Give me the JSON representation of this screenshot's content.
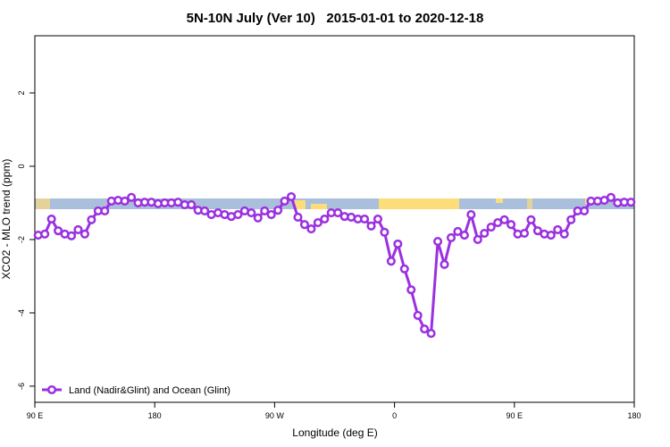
{
  "chart_data": {
    "type": "line",
    "title": "5N-10N July (Ver 10)   2015-01-01 to 2020-12-18",
    "x_label": "Longitude (deg E)",
    "y_label": "XCO2 - MLO trend (ppm)",
    "xlim": [
      -270,
      180
    ],
    "ylim": [
      -6.44,
      3.56
    ],
    "xticks": [
      {
        "value": -270,
        "label": "90 E"
      },
      {
        "value": -180,
        "label": "180"
      },
      {
        "value": -90,
        "label": "90 W"
      },
      0,
      {
        "value": 90,
        "label": "90 E"
      },
      {
        "value": 180,
        "label": "180"
      }
    ],
    "yticks": [
      -6,
      -4,
      -2,
      0,
      2
    ],
    "legend_position": "bottom-left",
    "x": [
      -267.5,
      -262.5,
      -257.5,
      -252.5,
      -247.5,
      -242.5,
      -237.5,
      -232.5,
      -227.5,
      -222.5,
      -217.5,
      -212.5,
      -207.5,
      -202.5,
      -197.5,
      -192.5,
      -187.5,
      -182.5,
      -177.5,
      -172.5,
      -167.5,
      -162.5,
      -157.5,
      -152.5,
      -147.5,
      -142.5,
      -137.5,
      -132.5,
      -127.5,
      -122.5,
      -117.5,
      -112.5,
      -107.5,
      -102.5,
      -97.5,
      -92.5,
      -87.5,
      -82.5,
      -77.5,
      -72.5,
      -67.5,
      -62.5,
      -57.5,
      -52.5,
      -47.5,
      -42.5,
      -37.5,
      -32.5,
      -27.5,
      -22.5,
      -17.5,
      -12.5,
      -7.5,
      -2.5,
      2.5,
      7.5,
      12.5,
      17.5,
      22.5,
      27.5,
      32.5,
      37.5,
      42.5,
      47.5,
      52.5,
      57.5,
      62.5,
      67.5,
      72.5,
      77.5,
      82.5,
      87.5,
      92.5,
      97.5,
      102.5,
      107.5,
      112.5,
      117.5,
      122.5,
      127.5,
      132.5,
      137.5,
      142.5,
      147.5,
      152.5,
      157.5,
      162.5,
      167.5,
      172.5,
      177.5
    ],
    "series": [
      {
        "name": "Land (Nadir&Glint) and Ocean (Glint)",
        "color": "#9b30e0",
        "values": [
          -1.88,
          -1.85,
          -1.44,
          -1.76,
          -1.85,
          -1.9,
          -1.73,
          -1.85,
          -1.46,
          -1.22,
          -1.22,
          -0.95,
          -0.93,
          -0.95,
          -0.85,
          -1.0,
          -0.98,
          -0.98,
          -1.02,
          -1.0,
          -1.0,
          -0.98,
          -1.05,
          -1.05,
          -1.2,
          -1.22,
          -1.32,
          -1.27,
          -1.32,
          -1.37,
          -1.32,
          -1.22,
          -1.27,
          -1.41,
          -1.22,
          -1.32,
          -1.2,
          -0.95,
          -0.83,
          -1.39,
          -1.59,
          -1.71,
          -1.54,
          -1.44,
          -1.27,
          -1.27,
          -1.37,
          -1.39,
          -1.44,
          -1.44,
          -1.63,
          -1.44,
          -1.8,
          -2.59,
          -2.12,
          -2.8,
          -3.37,
          -4.07,
          -4.44,
          -4.56,
          -2.05,
          -2.68,
          -1.95,
          -1.78,
          -1.88,
          -1.32,
          -2.0,
          -1.83,
          -1.66,
          -1.54,
          -1.46,
          -1.59,
          -1.85,
          -1.83,
          -1.46,
          -1.76,
          -1.85,
          -1.88,
          -1.73,
          -1.85,
          -1.46,
          -1.22,
          -1.22,
          -0.95,
          -0.95,
          -0.93,
          -0.85,
          -1.0,
          -0.98,
          -0.98
        ]
      }
    ]
  }
}
